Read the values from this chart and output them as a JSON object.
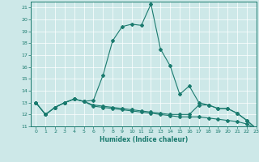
{
  "xlabel": "Humidex (Indice chaleur)",
  "xlim": [
    -0.5,
    23
  ],
  "ylim": [
    11,
    21.5
  ],
  "yticks": [
    11,
    12,
    13,
    14,
    15,
    16,
    17,
    18,
    19,
    20,
    21
  ],
  "xticks": [
    0,
    1,
    2,
    3,
    4,
    5,
    6,
    7,
    8,
    9,
    10,
    11,
    12,
    13,
    14,
    15,
    16,
    17,
    18,
    19,
    20,
    21,
    22,
    23
  ],
  "bg_color": "#cde8e8",
  "grid_color": "#b8d8d8",
  "line_color": "#1a7a6e",
  "line1_x": [
    0,
    1,
    2,
    3,
    4,
    5,
    6,
    7,
    8,
    9,
    10,
    11,
    12,
    13,
    14,
    15,
    16,
    17,
    18,
    19,
    20,
    21,
    22,
    23
  ],
  "line1_y": [
    13.0,
    12.0,
    12.6,
    13.0,
    13.3,
    13.1,
    13.2,
    15.3,
    18.2,
    19.4,
    19.6,
    19.5,
    21.3,
    17.5,
    16.1,
    13.7,
    14.4,
    13.0,
    12.8,
    12.5,
    12.5,
    12.1,
    11.5,
    10.8
  ],
  "line2_x": [
    0,
    1,
    2,
    3,
    4,
    5,
    6,
    7,
    8,
    9,
    10,
    11,
    12,
    13,
    14,
    15,
    16,
    17,
    18,
    19,
    20,
    21,
    22,
    23
  ],
  "line2_y": [
    13.0,
    12.0,
    12.6,
    13.0,
    13.3,
    13.1,
    12.8,
    12.7,
    12.6,
    12.5,
    12.4,
    12.3,
    12.2,
    12.1,
    12.0,
    12.0,
    12.0,
    12.8,
    12.8,
    12.5,
    12.5,
    12.1,
    11.5,
    10.8
  ],
  "line3_x": [
    0,
    1,
    2,
    3,
    4,
    5,
    6,
    7,
    8,
    9,
    10,
    11,
    12,
    13,
    14,
    15,
    16,
    17,
    18,
    19,
    20,
    21,
    22,
    23
  ],
  "line3_y": [
    13.0,
    12.0,
    12.6,
    13.0,
    13.3,
    13.1,
    12.7,
    12.6,
    12.5,
    12.4,
    12.3,
    12.2,
    12.1,
    12.0,
    11.9,
    11.8,
    11.8,
    11.8,
    11.7,
    11.6,
    11.5,
    11.4,
    11.2,
    10.8
  ]
}
